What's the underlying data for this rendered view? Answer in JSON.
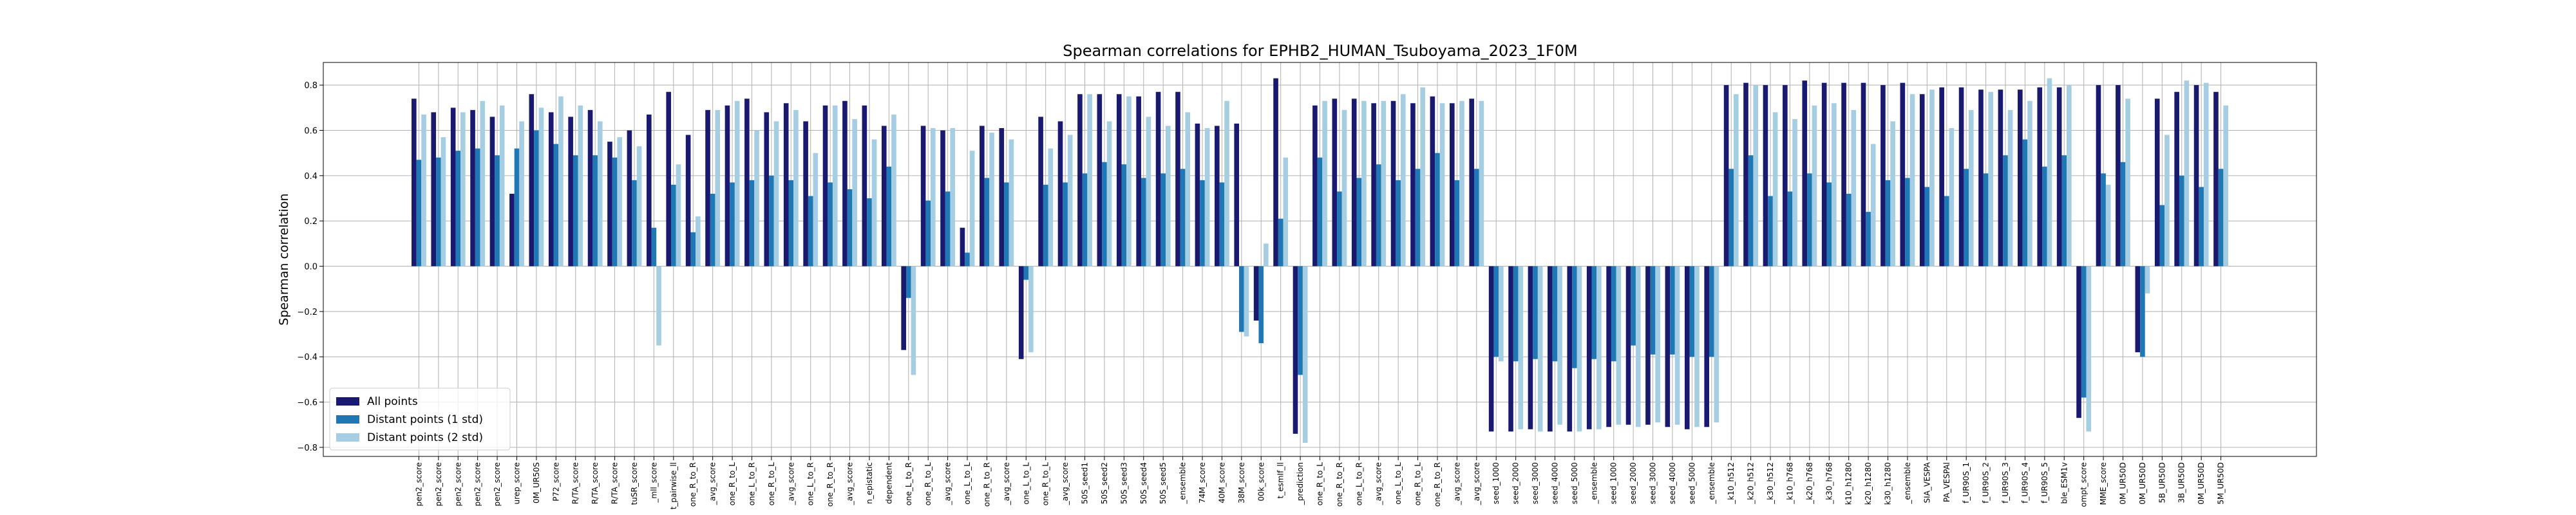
{
  "chart_data": {
    "type": "bar",
    "title": "Spearman correlations for EPHB2_HUMAN_Tsuboyama_2023_1F0M",
    "y_label": "Spearman correlation",
    "categories": [
      "pen2_score",
      "pen2_score",
      "pen2_score",
      "pen2_score",
      "pen2_score",
      "urep_score",
      "0M_UR50S",
      "P72_score",
      "R/TA_score",
      "R/TA_score",
      "R/TA_score",
      "tuSR_score",
      "_mll_score",
      "t_pairwise_ll",
      "one_R_to_R",
      "_avg_score",
      "one_R_to_L",
      "one_L_to_R",
      "one_R_to_L",
      "_avg_score",
      "one_L_to_R",
      "one_R_to_R",
      "_avg_score",
      "n_epistatic",
      "dependent",
      "one_L_to_R",
      "one_R_to_L",
      "_avg_score",
      "one_L_to_L",
      "one_R_to_R",
      "_avg_score",
      "one_L_to_L",
      "one_R_to_L",
      "_avg_score",
      "50S_seed1",
      "50S_seed2",
      "50S_seed3",
      "50S_seed4",
      "50S_seed5",
      "_ensemble",
      "74M_score",
      "40M_score",
      "38M_score",
      "00k_score",
      "t_esmIf_ll",
      "_prediction",
      "one_R_to_L",
      "one_R_to_R",
      "one_L_to_R",
      "_avg_score",
      "one_L_to_L",
      "one_R_to_L",
      "one_R_to_R",
      "_avg_score",
      "_avg_score",
      "seed_1000",
      "seed_2000",
      "seed_3000",
      "seed_4000",
      "seed_5000",
      "_ensemble",
      "seed_1000",
      "seed_2000",
      "seed_3000",
      "seed_4000",
      "seed_5000",
      "_ensemble",
      "_k10_h512",
      "_k20_h512",
      "_k30_h512",
      "_k10_h768",
      "_k20_h768",
      "_k30_h768",
      "k10_h1280",
      "k20_h1280",
      "k30_h1280",
      "_ensemble",
      "SIA_VESPA",
      "PA_VESPAl",
      "f_UR90S_1",
      "f_UR90S_2",
      "f_UR90S_3",
      "f_UR90S_4",
      "f_UR90S_5",
      "ble_ESM1v",
      "ompt_score",
      "MME_score",
      "0M_UR50D",
      "0M_UR50D",
      "5B_UR50D",
      "3B_UR50D",
      "0M_UR50D",
      "5M_UR50D"
    ],
    "series": [
      {
        "name": "All points",
        "color": "#191970",
        "values": [
          0.74,
          0.68,
          0.7,
          0.69,
          0.66,
          0.32,
          0.76,
          0.68,
          0.66,
          0.69,
          0.55,
          0.6,
          0.67,
          0.77,
          0.58,
          0.69,
          0.71,
          0.74,
          0.68,
          0.72,
          0.64,
          0.71,
          0.73,
          0.71,
          0.62,
          -0.37,
          0.62,
          0.6,
          0.17,
          0.62,
          0.61,
          -0.41,
          0.66,
          0.64,
          0.76,
          0.76,
          0.76,
          0.75,
          0.77,
          0.77,
          0.63,
          0.62,
          0.63,
          -0.24,
          0.83,
          -0.74,
          0.71,
          0.74,
          0.74,
          0.72,
          0.73,
          0.72,
          0.75,
          0.72,
          0.74,
          -0.73,
          -0.73,
          -0.72,
          -0.73,
          -0.73,
          -0.72,
          -0.71,
          -0.7,
          -0.7,
          -0.71,
          -0.72,
          -0.71,
          0.8,
          0.81,
          0.8,
          0.8,
          0.82,
          0.81,
          0.81,
          0.81,
          0.8,
          0.81,
          0.76,
          0.79,
          0.79,
          0.78,
          0.78,
          0.78,
          0.79,
          0.79,
          -0.67,
          0.8,
          0.8,
          -0.38,
          0.74,
          0.77,
          0.8,
          0.77
        ]
      },
      {
        "name": "Distant points (1 std)",
        "color": "#1f77b4",
        "values": [
          0.47,
          0.48,
          0.51,
          0.52,
          0.49,
          0.52,
          0.6,
          0.54,
          0.49,
          0.49,
          0.48,
          0.38,
          0.17,
          0.36,
          0.15,
          0.32,
          0.37,
          0.38,
          0.4,
          0.38,
          0.31,
          0.37,
          0.34,
          0.3,
          0.44,
          -0.14,
          0.29,
          0.33,
          0.06,
          0.39,
          0.37,
          -0.06,
          0.36,
          0.37,
          0.41,
          0.46,
          0.45,
          0.39,
          0.41,
          0.43,
          0.38,
          0.37,
          -0.29,
          -0.34,
          0.21,
          -0.48,
          0.48,
          0.33,
          0.39,
          0.45,
          0.38,
          0.43,
          0.5,
          0.38,
          0.43,
          -0.4,
          -0.42,
          -0.41,
          -0.42,
          -0.45,
          -0.41,
          -0.42,
          -0.35,
          -0.39,
          -0.39,
          -0.4,
          -0.4,
          0.43,
          0.49,
          0.31,
          0.33,
          0.41,
          0.37,
          0.32,
          0.24,
          0.38,
          0.39,
          0.35,
          0.31,
          0.43,
          0.41,
          0.49,
          0.56,
          0.44,
          0.49,
          -0.58,
          0.41,
          0.46,
          -0.4,
          0.27,
          0.4,
          0.35,
          0.43
        ]
      },
      {
        "name": "Distant points (2 std)",
        "color": "#a6cee3",
        "values": [
          0.67,
          0.57,
          0.68,
          0.73,
          0.71,
          0.64,
          0.7,
          0.75,
          0.71,
          0.64,
          0.57,
          0.53,
          -0.35,
          0.45,
          0.22,
          0.69,
          0.73,
          0.6,
          0.64,
          0.69,
          0.5,
          0.71,
          0.65,
          0.56,
          0.67,
          -0.48,
          0.61,
          0.61,
          0.51,
          0.59,
          0.56,
          -0.38,
          0.52,
          0.58,
          0.76,
          0.64,
          0.75,
          0.66,
          0.62,
          0.68,
          0.61,
          0.73,
          -0.31,
          0.1,
          0.48,
          -0.78,
          0.73,
          0.69,
          0.73,
          0.73,
          0.76,
          0.79,
          0.72,
          0.73,
          0.73,
          -0.42,
          -0.72,
          -0.73,
          -0.7,
          -0.73,
          -0.72,
          -0.7,
          -0.71,
          -0.69,
          -0.7,
          -0.71,
          -0.69,
          0.76,
          0.8,
          0.68,
          0.65,
          0.71,
          0.72,
          0.69,
          0.54,
          0.64,
          0.76,
          0.78,
          0.61,
          0.69,
          0.77,
          0.69,
          0.73,
          0.83,
          0.8,
          -0.73,
          0.36,
          0.74,
          -0.12,
          0.58,
          0.82,
          0.81,
          0.71
        ]
      }
    ],
    "ylim": [
      -0.84,
      0.9
    ],
    "yticks": [
      {
        "value": -0.8,
        "label": "−0.8"
      },
      {
        "value": -0.6,
        "label": "−0.6"
      },
      {
        "value": -0.4,
        "label": "−0.4"
      },
      {
        "value": -0.2,
        "label": "−0.2"
      },
      {
        "value": 0.0,
        "label": "0.0"
      },
      {
        "value": 0.2,
        "label": "0.2"
      },
      {
        "value": 0.4,
        "label": "0.4"
      },
      {
        "value": 0.6,
        "label": "0.6"
      },
      {
        "value": 0.8,
        "label": "0.8"
      }
    ],
    "grid": true,
    "legend": "lower left"
  }
}
